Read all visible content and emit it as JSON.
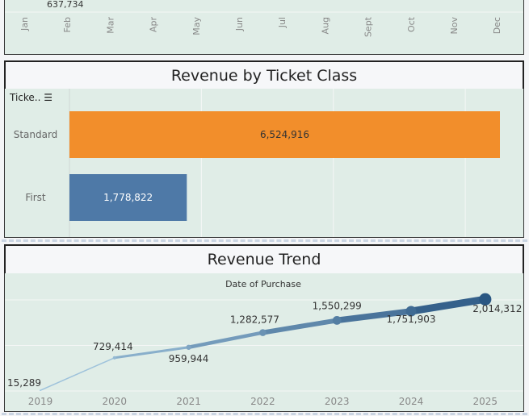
{
  "chart_data": [
    {
      "type": "bar",
      "title": "",
      "partial": true,
      "categories": [
        "Jan",
        "Feb",
        "Mar",
        "Apr",
        "May",
        "Jun",
        "Jul",
        "Aug",
        "Sept",
        "Oct",
        "Nov",
        "Dec"
      ],
      "data_labels": [
        "637,734"
      ]
    },
    {
      "type": "bar",
      "orientation": "horizontal",
      "title": "Revenue by Ticket Class",
      "row_header": "Ticke..",
      "categories": [
        "Standard",
        "First"
      ],
      "values": [
        6524916,
        1778822
      ],
      "value_labels": [
        "6,524,916",
        "1,778,822"
      ],
      "colors": [
        "#f28e2b",
        "#4e79a7"
      ],
      "xlim": [
        0,
        6600000
      ],
      "grid": true
    },
    {
      "type": "line",
      "title": "Revenue Trend",
      "xlabel": "Date of Purchase",
      "x": [
        "2019",
        "2020",
        "2021",
        "2022",
        "2023",
        "2024",
        "2025"
      ],
      "values": [
        15289,
        729414,
        959944,
        1282577,
        1550299,
        1751903,
        2014312
      ],
      "value_labels": [
        "15,289",
        "729,414",
        "959,944",
        "1,282,577",
        "1,550,299",
        "1,751,903",
        "2,014,312"
      ],
      "ylim": [
        0,
        2000000
      ],
      "grid": true,
      "color_range": [
        "#a9cce3",
        "#2a5783"
      ]
    }
  ]
}
